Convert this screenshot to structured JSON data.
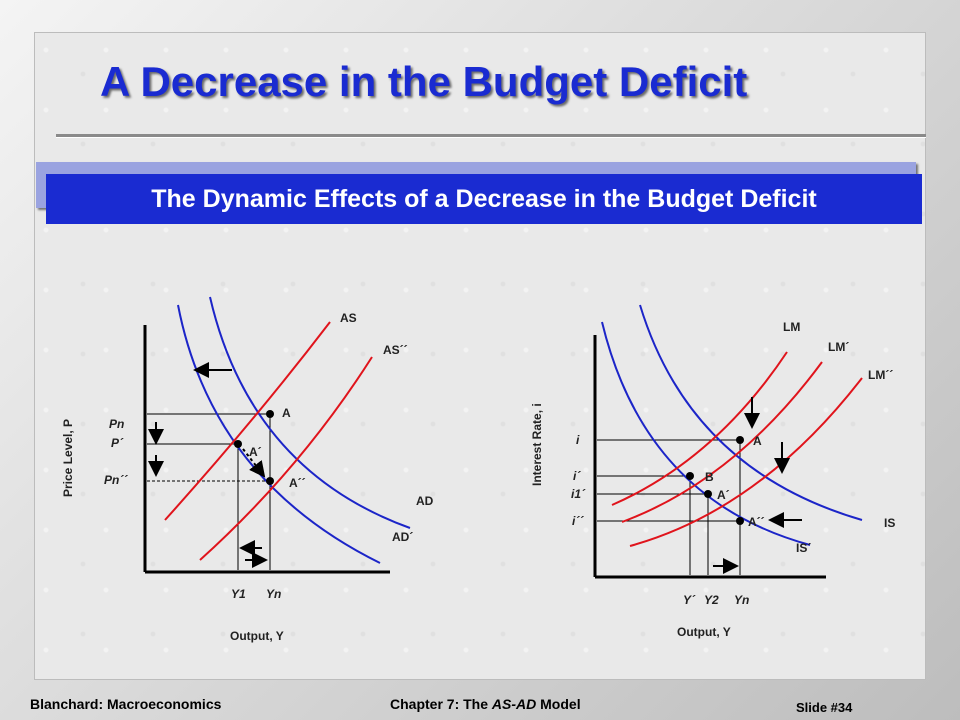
{
  "title": "A Decrease in the Budget Deficit",
  "banner": "The Dynamic Effects of a Decrease in the Budget Deficit",
  "footer": {
    "left": "Blanchard: Macroeconomics",
    "chapter_prefix": "Chapter 7: The ",
    "chapter_model": "AS-AD",
    "chapter_suffix": " Model",
    "slide": "Slide #34"
  },
  "colors": {
    "title": "#1a2bd1",
    "banner": "#1a2bd1",
    "blue_curve": "#1c25c8",
    "red_curve": "#e0141c"
  },
  "asad": {
    "y_axis_label": "Price Level, P",
    "x_axis_label": "Output, Y",
    "curves": {
      "as": "AS",
      "as2": "AS´´",
      "ad": "AD",
      "ad2": "AD´"
    },
    "points": {
      "a": "A",
      "a1": "A´",
      "a2": "A´´"
    },
    "y_ticks": {
      "pn": "Pn",
      "p1": "P´",
      "pn2": "Pn´´"
    },
    "x_ticks": {
      "y1": "Y1",
      "yn": "Yn"
    }
  },
  "islm": {
    "y_axis_label": "Interest Rate, i",
    "x_axis_label": "Output, Y",
    "curves": {
      "lm": "LM",
      "lm1": "LM´",
      "lm2": "LM´´",
      "is": "IS",
      "is1": "IS´"
    },
    "points": {
      "a": "A",
      "b": "B",
      "a1": "A´",
      "a2": "A´´"
    },
    "y_ticks": {
      "i": "i",
      "i1": "i´",
      "i1sub": "i1´",
      "i2": "i´´"
    },
    "x_ticks": {
      "y1": "Y´",
      "y2": "Y2",
      "yn": "Yn"
    }
  }
}
